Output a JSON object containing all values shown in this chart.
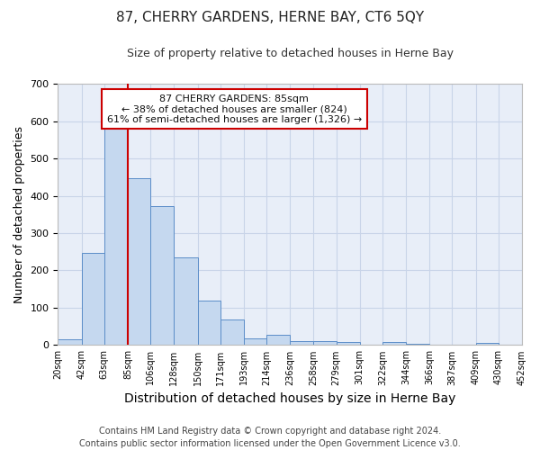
{
  "title": "87, CHERRY GARDENS, HERNE BAY, CT6 5QY",
  "subtitle": "Size of property relative to detached houses in Herne Bay",
  "xlabel": "Distribution of detached houses by size in Herne Bay",
  "ylabel": "Number of detached properties",
  "footer_line1": "Contains HM Land Registry data © Crown copyright and database right 2024.",
  "footer_line2": "Contains public sector information licensed under the Open Government Licence v3.0.",
  "annotation_line1": "87 CHERRY GARDENS: 85sqm",
  "annotation_line2": "← 38% of detached houses are smaller (824)",
  "annotation_line3": "61% of semi-detached houses are larger (1,326) →",
  "bar_edges": [
    20,
    42,
    63,
    85,
    106,
    128,
    150,
    171,
    193,
    214,
    236,
    258,
    279,
    301,
    322,
    344,
    366,
    387,
    409,
    430,
    452
  ],
  "bar_heights": [
    15,
    248,
    585,
    447,
    372,
    236,
    120,
    68,
    17,
    28,
    11,
    10,
    8,
    0,
    8,
    3,
    0,
    0,
    5,
    0
  ],
  "bar_color": "#c5d8ef",
  "bar_edge_color": "#5b8dc8",
  "red_line_x": 85,
  "red_line_color": "#cc0000",
  "annotation_box_color": "#ffffff",
  "annotation_box_edge_color": "#cc0000",
  "ylim": [
    0,
    700
  ],
  "yticks": [
    0,
    100,
    200,
    300,
    400,
    500,
    600,
    700
  ],
  "xlim": [
    20,
    452
  ],
  "xtick_labels": [
    "20sqm",
    "42sqm",
    "63sqm",
    "85sqm",
    "106sqm",
    "128sqm",
    "150sqm",
    "171sqm",
    "193sqm",
    "214sqm",
    "236sqm",
    "258sqm",
    "279sqm",
    "301sqm",
    "322sqm",
    "344sqm",
    "366sqm",
    "387sqm",
    "409sqm",
    "430sqm",
    "452sqm"
  ],
  "xtick_positions": [
    20,
    42,
    63,
    85,
    106,
    128,
    150,
    171,
    193,
    214,
    236,
    258,
    279,
    301,
    322,
    344,
    366,
    387,
    409,
    430,
    452
  ],
  "grid_color": "#c8d4e8",
  "background_color": "#e8eef8",
  "title_fontsize": 11,
  "subtitle_fontsize": 9,
  "ylabel_fontsize": 9,
  "xlabel_fontsize": 10,
  "footer_fontsize": 7
}
